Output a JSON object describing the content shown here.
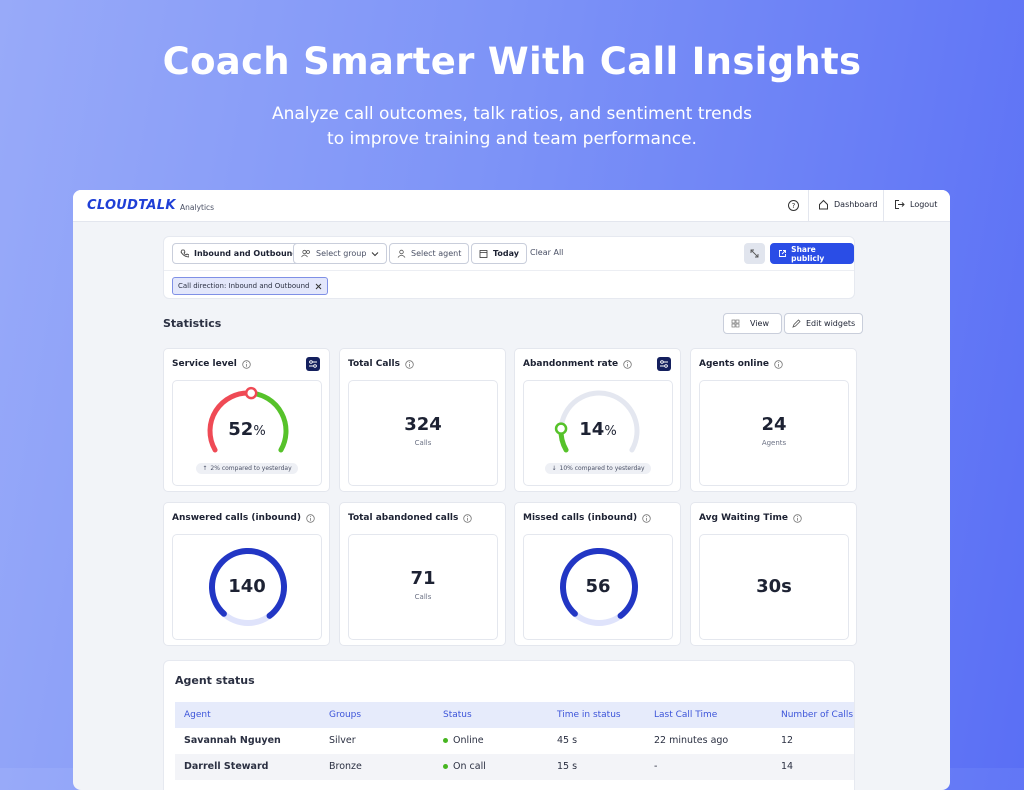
{
  "hero": {
    "title": "Coach Smarter With Call Insights",
    "subtitle": [
      "Analyze call outcomes, talk ratios, and sentiment trends",
      "to improve training and team performance."
    ]
  },
  "header": {
    "logo": "CLOUDTALK",
    "product": "Analytics",
    "nav": [
      "Dashboard",
      "Logout"
    ]
  },
  "filters": {
    "buttons": [
      "Inbound and Outbound",
      "Select group",
      "Select agent",
      "Today"
    ],
    "clear": "Clear All",
    "share": "Share publicly",
    "chip": "Call direction: Inbound and Outbound"
  },
  "statistics": {
    "title": "Statistics",
    "actions": [
      "View",
      "Edit widgets"
    ],
    "widgets": [
      {
        "title": "Service level",
        "value": 52,
        "unit": "%",
        "comparison": "2% compared to yesterday"
      },
      {
        "title": "Total Calls",
        "value": 324,
        "caption": "Calls"
      },
      {
        "title": "Abandonment rate",
        "value": 14,
        "unit": "%",
        "comparison": "10% compared to yesterday"
      },
      {
        "title": "Agents online",
        "value": 24,
        "caption": "Agents"
      },
      {
        "title": "Answered calls (inbound)",
        "value": 140
      },
      {
        "title": "Total abandoned calls",
        "value": 71,
        "caption": "Calls"
      },
      {
        "title": "Missed calls (inbound)",
        "value": 56
      },
      {
        "title": "Avg Waiting Time",
        "value": "30s"
      }
    ]
  },
  "agent_status": {
    "title": "Agent status",
    "columns": [
      "Agent",
      "Groups",
      "Status",
      "Time in status",
      "Last Call Time",
      "Number of Calls"
    ],
    "rows": [
      [
        "Savannah Nguyen",
        "Silver",
        "Online",
        "45 s",
        "22 minutes ago",
        "12"
      ],
      [
        "Darrell Steward",
        "Bronze",
        "On call",
        "15 s",
        "-",
        "14"
      ]
    ]
  }
}
